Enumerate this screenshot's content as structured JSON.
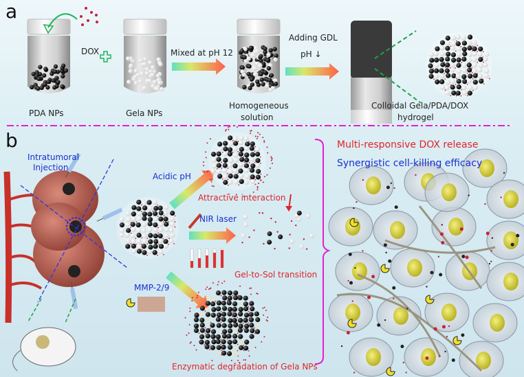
{
  "panel_a": {
    "letter": "a",
    "dox_label": "DOX",
    "pda_label": "PDA NPs",
    "gela_label": "Gela NPs",
    "mix_label": "Mixed at pH 12",
    "homogeneous_label_1": "Homogeneous",
    "homogeneous_label_2": "solution",
    "gdl_label": "Adding GDL",
    "ph_label": "pH ↓",
    "hydrogel_label_1": "Colloidal Gela/PDA/DOX",
    "hydrogel_label_2": "hydrogel"
  },
  "panel_b": {
    "letter": "b",
    "injection_label_1": "Intratumoral",
    "injection_label_2": "Injection",
    "acidic_label": "Acidic pH",
    "attractive_label": "Attractive interaction",
    "nir_label": "NIR laser",
    "gelsol_label": "Gel-to-Sol transition",
    "mmp_label": "MMP-2/9",
    "enzymatic_label": "Enzymatic degradation of Gela NPs",
    "release_label": "Multi-responsive DOX release",
    "killing_label": "Synergistic cell-killing efficacy"
  },
  "colors": {
    "red_text": "#e0242a",
    "blue_text": "#1a2fd0",
    "divider": "#e21fd0",
    "pda": "#1a1a1a",
    "gela": "#ffffff",
    "dox": "#c8203a",
    "arrow_green": "#6be0b0",
    "arrow_orange": "#ff6a4a"
  }
}
